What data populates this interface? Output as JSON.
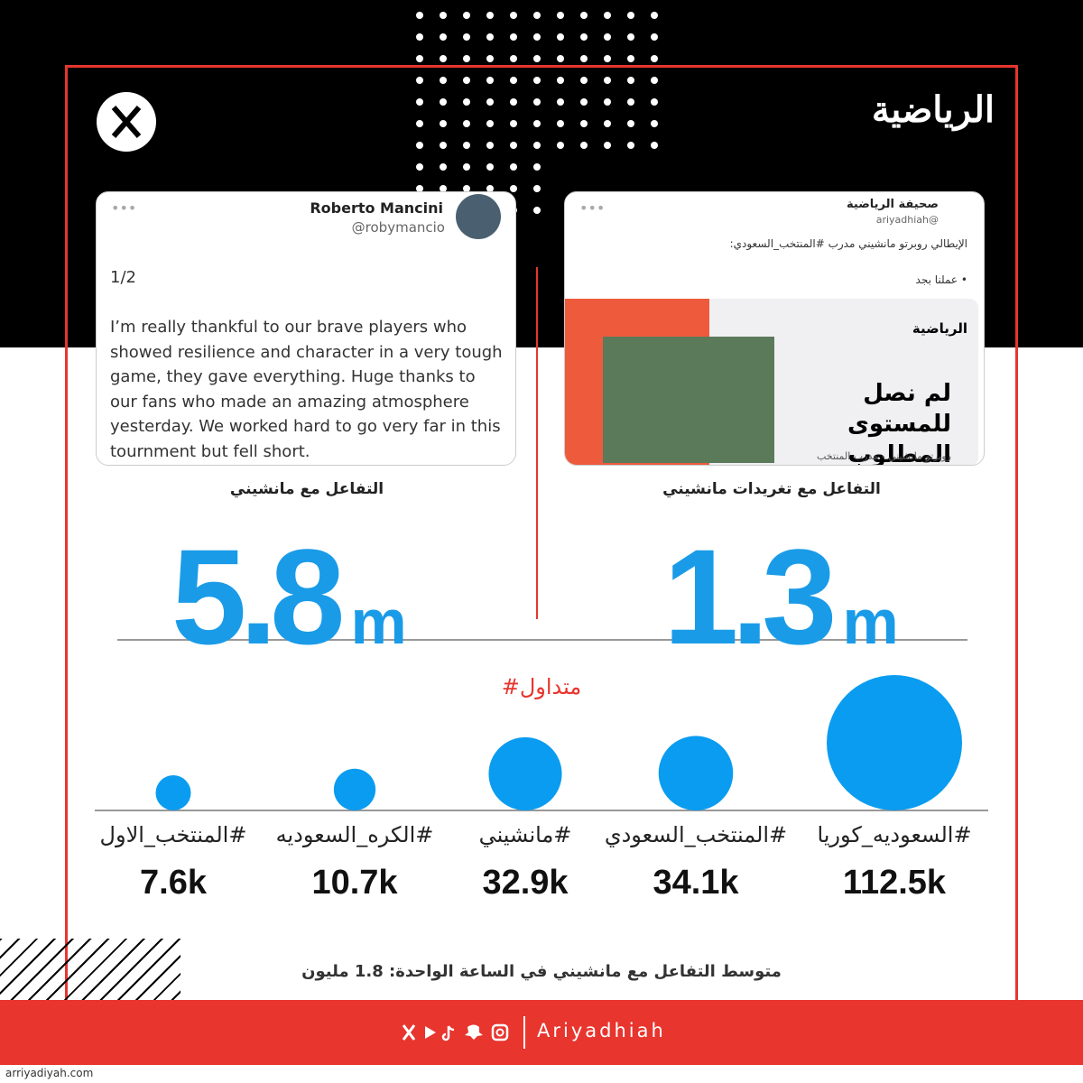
{
  "brand": {
    "logo": "الرياضية",
    "handle": "Ariyadhiah",
    "site": "arriyadiyah.com"
  },
  "tweets": [
    {
      "name": "Roberto Mancini",
      "handle": "@robymancio",
      "number": "1/2",
      "text": "I’m really thankful to our brave players who showed resilience and character in a very tough game, they gave everything. Huge thanks to our fans who made an amazing atmosphere yesterday. We worked hard to go very far in this tournment but fell short.",
      "caption": "التفاعل مع مانشيني",
      "stat": "5.8",
      "unit": "m"
    },
    {
      "name": "صحيفة الرياضية",
      "handle": "@ariyadhiah",
      "text": "الإيطالي روبرتو مانشيني مدرب #المنتخب_السعودي:",
      "bullet": "• عملنا بجد",
      "card": {
        "logo": "الرياضية",
        "headline": "لم نصل للمستوى المطلوب",
        "sub": "روبرتو مانشيني - مدرب المنتخب"
      },
      "caption": "التفاعل مع تغريدات مانشيني",
      "stat": "1.3",
      "unit": "m"
    }
  ],
  "trending": {
    "title": "#متداول",
    "items": [
      {
        "hashtag": "#السعوديه_كوريا",
        "value": 112.5,
        "value_label": "112.5k"
      },
      {
        "hashtag": "#المنتخب_السعودي",
        "value": 34.1,
        "value_label": "34.1k"
      },
      {
        "hashtag": "#مانشيني",
        "value": 32.9,
        "value_label": "32.9k"
      },
      {
        "hashtag": "#الكره_السعوديه",
        "value": 10.7,
        "value_label": "10.7k"
      },
      {
        "hashtag": "#المنتخب_الاول",
        "value": 7.6,
        "value_label": "7.6k"
      }
    ]
  },
  "footnote": "متوسط التفاعل مع مانشيني في الساعة الواحدة: 1.8 مليون"
}
